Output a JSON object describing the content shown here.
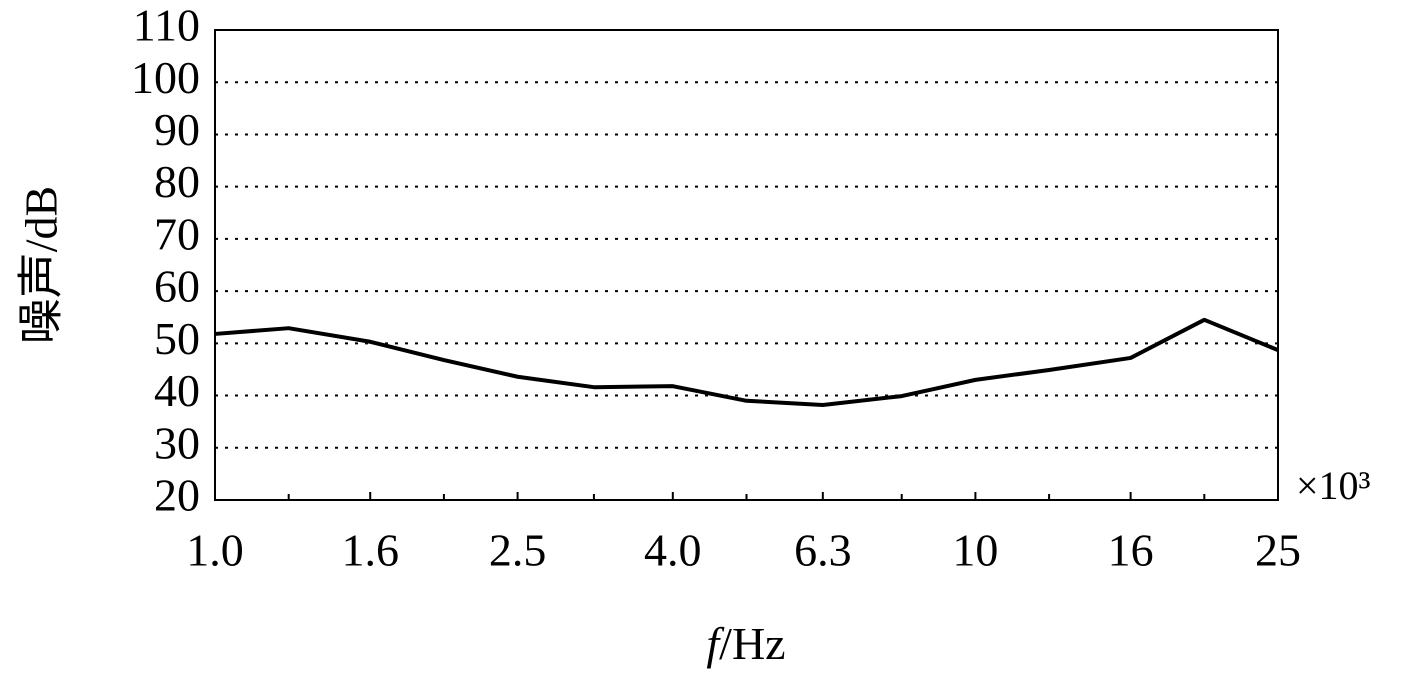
{
  "chart_data": {
    "type": "line",
    "y_label": "噪声/dB",
    "x_label": "f/Hz",
    "x_multiplier": "×10³",
    "x": [
      1.0,
      1.25,
      1.6,
      2.0,
      2.5,
      3.15,
      4.0,
      5.0,
      6.3,
      8.0,
      10,
      12.5,
      16,
      20,
      25
    ],
    "series": [
      {
        "color": "#000000",
        "values": [
          51.8,
          52.9,
          50.3,
          46.8,
          43.6,
          41.6,
          41.8,
          39.0,
          38.2,
          39.9,
          43.0,
          44.9,
          47.2,
          54.5,
          48.7
        ]
      }
    ],
    "xlim": [
      1.0,
      25
    ],
    "xlog": true,
    "xticks": [
      {
        "value": 1.0,
        "label": "1.0"
      },
      1.6,
      2.5,
      {
        "value": 4.0,
        "label": "4.0"
      },
      6.3,
      10,
      16,
      25
    ],
    "xminor_ticks": [
      1.25,
      2,
      3.15,
      5,
      8,
      12.5,
      20
    ],
    "ylim": [
      20,
      110
    ],
    "yticks": [
      20,
      30,
      40,
      50,
      60,
      70,
      80,
      90,
      100,
      110
    ],
    "grid": true
  }
}
